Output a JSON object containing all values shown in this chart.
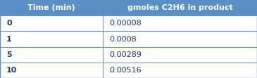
{
  "header": [
    "Time (min)",
    "gmoles C2H6 in product"
  ],
  "rows": [
    [
      "0",
      "0.00008"
    ],
    [
      "1",
      "0.0008"
    ],
    [
      "5",
      "0.00289"
    ],
    [
      "10",
      "0.00516"
    ]
  ],
  "header_bg": "#5b8fc5",
  "header_text_color": "#ffffff",
  "row_bg": "#ffffff",
  "row_left_text_color": "#1a3a6b",
  "row_right_text_color": "#1a3a6b",
  "border_color": "#5b8fc5",
  "col_split": 0.4,
  "header_fontsize": 8.0,
  "cell_fontsize": 8.0,
  "fig_width": 3.65,
  "fig_height": 1.11,
  "dpi": 100
}
